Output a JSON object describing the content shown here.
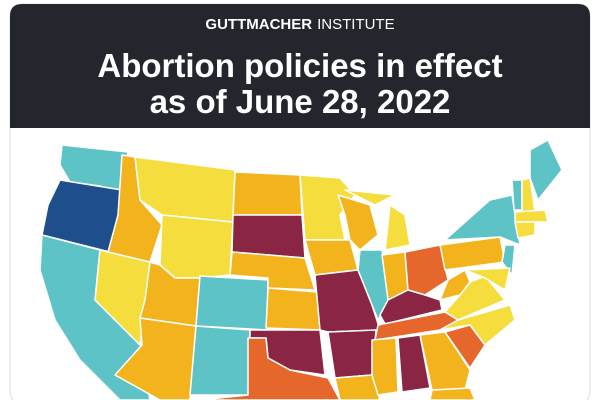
{
  "header": {
    "brand_bold": "GUTTMACHER",
    "brand_light": "INSTITUTE",
    "title_lines": [
      "Abortion policies in effect",
      "as of June 28, 2022"
    ]
  }
}
